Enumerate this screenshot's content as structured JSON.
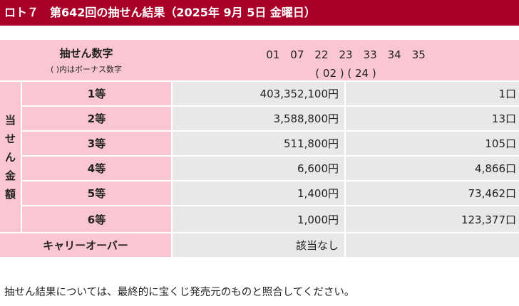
{
  "title": "ロト７　第642回の抽せん結果（2025年 9月 5日 金曜日）",
  "numbers": {
    "label": "抽せん数字",
    "sub_label": "( )内はボーナス数字",
    "main": "01　07　22　23　33　34　35",
    "bonus": "( 02 ) ( 24 )"
  },
  "prize_section_label": [
    "当",
    "せ",
    "ん",
    "金",
    "額"
  ],
  "prizes": [
    {
      "rank": "1等",
      "amount": "403,352,100円",
      "count": "1口"
    },
    {
      "rank": "2等",
      "amount": "3,588,800円",
      "count": "13口"
    },
    {
      "rank": "3等",
      "amount": "511,800円",
      "count": "105口"
    },
    {
      "rank": "4等",
      "amount": "6,600円",
      "count": "4,866口"
    },
    {
      "rank": "5等",
      "amount": "1,400円",
      "count": "73,462口"
    },
    {
      "rank": "6等",
      "amount": "1,000円",
      "count": "123,377口"
    }
  ],
  "carryover": {
    "label": "キャリーオーバー",
    "value": "該当なし"
  },
  "footnote": "抽せん結果については、最終的に宝くじ発売元のものと照合してください。",
  "colors": {
    "title_bg": "#a80028",
    "label_bg": "#fbc6d3",
    "value_bg": "#e8e8e8"
  }
}
